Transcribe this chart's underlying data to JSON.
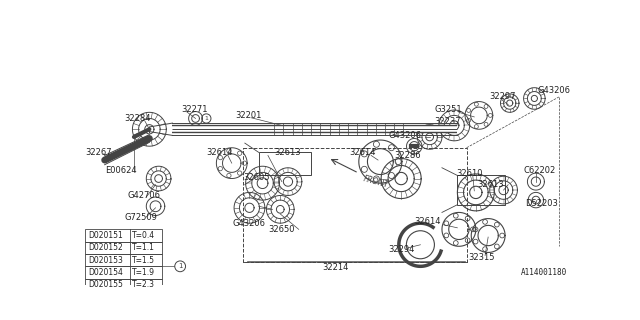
{
  "bg_color": "#ffffff",
  "lc": "#444444",
  "table_data": [
    [
      "D020151",
      "T=0.4"
    ],
    [
      "D020152",
      "T=1.1"
    ],
    [
      "D020153",
      "T=1.5"
    ],
    [
      "D020154",
      "T=1.9"
    ],
    [
      "D020155",
      "T=2.3"
    ]
  ],
  "catalog_num": "A114001180"
}
